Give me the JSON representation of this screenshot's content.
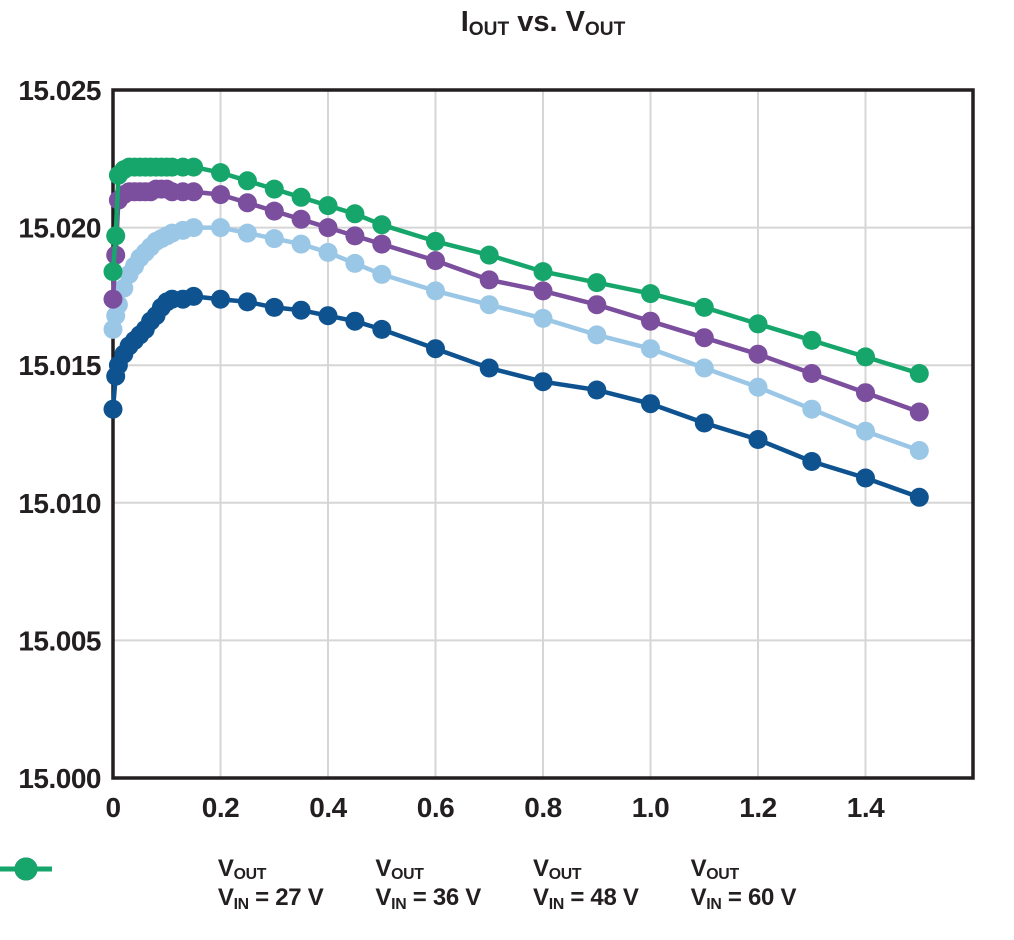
{
  "title": {
    "parts": [
      {
        "text": "I"
      },
      {
        "text": "OUT",
        "sub": true
      },
      {
        "text": " vs. V"
      },
      {
        "text": "OUT",
        "sub": true
      }
    ]
  },
  "legend_template": {
    "line1_main": "V",
    "line1_sub": "OUT",
    "line2_main": "V",
    "line2_sub": "IN",
    "line2_separator": " = "
  },
  "chart_data": {
    "type": "line",
    "title": "IOUT vs. VOUT",
    "xlabel": "",
    "ylabel": "",
    "grid": true,
    "legend_position": "bottom",
    "x_axis": {
      "min": 0,
      "max": 1.6,
      "tick_values": [
        0,
        0.2,
        0.4,
        0.6,
        0.8,
        1.0,
        1.2,
        1.4
      ],
      "tick_labels": [
        "0",
        "0.2",
        "0.4",
        "0.6",
        "0.8",
        "1.0",
        "1.2",
        "1.4"
      ]
    },
    "y_axis": {
      "min": 15.0,
      "max": 15.025,
      "tick_values": [
        15.0,
        15.005,
        15.01,
        15.015,
        15.02,
        15.025
      ],
      "tick_labels": [
        "15.000",
        "15.005",
        "15.010",
        "15.015",
        "15.020",
        "15.025"
      ]
    },
    "colors": {
      "axis": "#231f20",
      "grid": "#d6d6d6",
      "background": "#ffffff"
    },
    "series": [
      {
        "name": "VOUT, VIN = 27 V",
        "vin": "27 V",
        "color": "#0e5390",
        "points": [
          [
            0,
            15.0134
          ],
          [
            0.005,
            15.0146
          ],
          [
            0.01,
            15.015
          ],
          [
            0.02,
            15.0154
          ],
          [
            0.03,
            15.0157
          ],
          [
            0.04,
            15.0159
          ],
          [
            0.05,
            15.0161
          ],
          [
            0.06,
            15.0163
          ],
          [
            0.07,
            15.0166
          ],
          [
            0.08,
            15.0168
          ],
          [
            0.09,
            15.0171
          ],
          [
            0.1,
            15.0173
          ],
          [
            0.11,
            15.0174
          ],
          [
            0.13,
            15.0174
          ],
          [
            0.15,
            15.0175
          ],
          [
            0.2,
            15.0174
          ],
          [
            0.25,
            15.0173
          ],
          [
            0.3,
            15.0171
          ],
          [
            0.35,
            15.017
          ],
          [
            0.4,
            15.0168
          ],
          [
            0.45,
            15.0166
          ],
          [
            0.5,
            15.0163
          ],
          [
            0.6,
            15.0156
          ],
          [
            0.7,
            15.0149
          ],
          [
            0.8,
            15.0144
          ],
          [
            0.9,
            15.0141
          ],
          [
            1.0,
            15.0136
          ],
          [
            1.1,
            15.0129
          ],
          [
            1.2,
            15.0123
          ],
          [
            1.3,
            15.0115
          ],
          [
            1.4,
            15.0109
          ],
          [
            1.5,
            15.0102
          ]
        ]
      },
      {
        "name": "VOUT, VIN = 36 V",
        "vin": "36 V",
        "color": "#9bc7e6",
        "points": [
          [
            0,
            15.0163
          ],
          [
            0.005,
            15.0168
          ],
          [
            0.01,
            15.0172
          ],
          [
            0.02,
            15.0178
          ],
          [
            0.03,
            15.0183
          ],
          [
            0.04,
            15.0186
          ],
          [
            0.05,
            15.0189
          ],
          [
            0.06,
            15.0191
          ],
          [
            0.07,
            15.0193
          ],
          [
            0.08,
            15.0195
          ],
          [
            0.09,
            15.0196
          ],
          [
            0.1,
            15.0197
          ],
          [
            0.11,
            15.0198
          ],
          [
            0.13,
            15.0199
          ],
          [
            0.15,
            15.02
          ],
          [
            0.2,
            15.02
          ],
          [
            0.25,
            15.0198
          ],
          [
            0.3,
            15.0196
          ],
          [
            0.35,
            15.0194
          ],
          [
            0.4,
            15.0191
          ],
          [
            0.45,
            15.0187
          ],
          [
            0.5,
            15.0183
          ],
          [
            0.6,
            15.0177
          ],
          [
            0.7,
            15.0172
          ],
          [
            0.8,
            15.0167
          ],
          [
            0.9,
            15.0161
          ],
          [
            1.0,
            15.0156
          ],
          [
            1.1,
            15.0149
          ],
          [
            1.2,
            15.0142
          ],
          [
            1.3,
            15.0134
          ],
          [
            1.4,
            15.0126
          ],
          [
            1.5,
            15.0119
          ]
        ]
      },
      {
        "name": "VOUT, VIN = 48 V",
        "vin": "48 V",
        "color": "#7c4e9e",
        "points": [
          [
            0,
            15.0174
          ],
          [
            0.005,
            15.019
          ],
          [
            0.01,
            15.021
          ],
          [
            0.02,
            15.0212
          ],
          [
            0.03,
            15.0213
          ],
          [
            0.04,
            15.0213
          ],
          [
            0.05,
            15.0213
          ],
          [
            0.06,
            15.0213
          ],
          [
            0.07,
            15.0213
          ],
          [
            0.08,
            15.0214
          ],
          [
            0.09,
            15.0214
          ],
          [
            0.1,
            15.0214
          ],
          [
            0.11,
            15.0213
          ],
          [
            0.13,
            15.0213
          ],
          [
            0.15,
            15.0213
          ],
          [
            0.2,
            15.0212
          ],
          [
            0.25,
            15.0209
          ],
          [
            0.3,
            15.0206
          ],
          [
            0.35,
            15.0203
          ],
          [
            0.4,
            15.02
          ],
          [
            0.45,
            15.0197
          ],
          [
            0.5,
            15.0194
          ],
          [
            0.6,
            15.0188
          ],
          [
            0.7,
            15.0181
          ],
          [
            0.8,
            15.0177
          ],
          [
            0.9,
            15.0172
          ],
          [
            1.0,
            15.0166
          ],
          [
            1.1,
            15.016
          ],
          [
            1.2,
            15.0154
          ],
          [
            1.3,
            15.0147
          ],
          [
            1.4,
            15.014
          ],
          [
            1.5,
            15.0133
          ]
        ]
      },
      {
        "name": "VOUT, VIN = 60 V",
        "vin": "60 V",
        "color": "#16a66b",
        "points": [
          [
            0,
            15.0184
          ],
          [
            0.005,
            15.0197
          ],
          [
            0.01,
            15.0219
          ],
          [
            0.02,
            15.0221
          ],
          [
            0.03,
            15.0222
          ],
          [
            0.04,
            15.0222
          ],
          [
            0.05,
            15.0222
          ],
          [
            0.06,
            15.0222
          ],
          [
            0.07,
            15.0222
          ],
          [
            0.08,
            15.0222
          ],
          [
            0.09,
            15.0222
          ],
          [
            0.1,
            15.0222
          ],
          [
            0.11,
            15.0222
          ],
          [
            0.13,
            15.0222
          ],
          [
            0.15,
            15.0222
          ],
          [
            0.2,
            15.022
          ],
          [
            0.25,
            15.0217
          ],
          [
            0.3,
            15.0214
          ],
          [
            0.35,
            15.0211
          ],
          [
            0.4,
            15.0208
          ],
          [
            0.45,
            15.0205
          ],
          [
            0.5,
            15.0201
          ],
          [
            0.6,
            15.0195
          ],
          [
            0.7,
            15.019
          ],
          [
            0.8,
            15.0184
          ],
          [
            0.9,
            15.018
          ],
          [
            1.0,
            15.0176
          ],
          [
            1.1,
            15.0171
          ],
          [
            1.2,
            15.0165
          ],
          [
            1.3,
            15.0159
          ],
          [
            1.4,
            15.0153
          ],
          [
            1.5,
            15.0147
          ]
        ]
      }
    ]
  }
}
